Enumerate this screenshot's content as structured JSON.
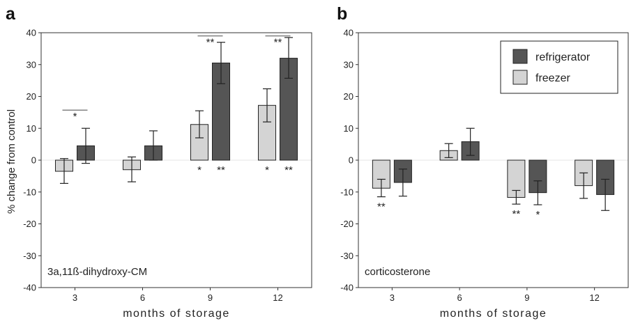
{
  "colors": {
    "freezer": "#d4d4d4",
    "refrigerator": "#555555",
    "axis": "#333333",
    "zero_line": "#e6e6e6",
    "bracket": "#777777"
  },
  "legend": {
    "placement": "top-right of panel b",
    "entries": [
      {
        "label": "refrigerator",
        "color": "#555555"
      },
      {
        "label": "freezer",
        "color": "#d4d4d4"
      }
    ]
  },
  "chart_data": [
    {
      "panel": "a",
      "type": "bar",
      "label": "3a,11ß-dihydroxy-CM",
      "ylabel": "% change from control",
      "xlabel": "months of storage",
      "ylim": [
        -40,
        40
      ],
      "yticks": [
        "40",
        "30",
        "20",
        "10",
        "0",
        "-10",
        "-20",
        "-30",
        "-40"
      ],
      "categories": [
        "3",
        "6",
        "9",
        "12"
      ],
      "series": [
        {
          "name": "freezer",
          "values": [
            -3.5,
            -3.0,
            11.2,
            17.2
          ],
          "err_low": [
            -7.3,
            -6.8,
            7.0,
            12.0
          ],
          "err_high": [
            0.5,
            1.0,
            15.5,
            22.4
          ],
          "sig_below": [
            "",
            "",
            "*",
            "*"
          ]
        },
        {
          "name": "refrigerator",
          "values": [
            4.5,
            4.5,
            30.5,
            32.0
          ],
          "err_low": [
            -1.0,
            0.0,
            24.0,
            25.7
          ],
          "err_high": [
            10.0,
            9.2,
            37.0,
            38.5
          ],
          "sig_below": [
            "",
            "",
            "**",
            "**"
          ]
        }
      ],
      "brackets": [
        {
          "category": "3",
          "level": 15.7,
          "label": "*"
        },
        {
          "category": "9",
          "level": 39.0,
          "label": "**"
        },
        {
          "category": "12",
          "level": 39.0,
          "label": "**"
        }
      ]
    },
    {
      "panel": "b",
      "type": "bar",
      "label": "corticosterone",
      "xlabel": "months of storage",
      "ylim": [
        -40,
        40
      ],
      "yticks": [
        "40",
        "30",
        "20",
        "10",
        "0",
        "-10",
        "-20",
        "-30",
        "-40"
      ],
      "categories": [
        "3",
        "6",
        "9",
        "12"
      ],
      "series": [
        {
          "name": "freezer",
          "values": [
            -8.8,
            3.0,
            -11.7,
            -8.0
          ],
          "err_low": [
            -11.5,
            0.8,
            -13.8,
            -12.0
          ],
          "err_high": [
            -6.0,
            5.2,
            -9.5,
            -4.0
          ],
          "sig_below": [
            "**",
            "",
            "**",
            ""
          ]
        },
        {
          "name": "refrigerator",
          "values": [
            -7.0,
            5.8,
            -10.2,
            -10.8
          ],
          "err_low": [
            -11.3,
            1.5,
            -14.0,
            -15.8
          ],
          "err_high": [
            -2.8,
            10.0,
            -6.5,
            -6.0
          ],
          "sig_below": [
            "",
            "",
            "*",
            ""
          ]
        }
      ],
      "brackets": []
    }
  ]
}
